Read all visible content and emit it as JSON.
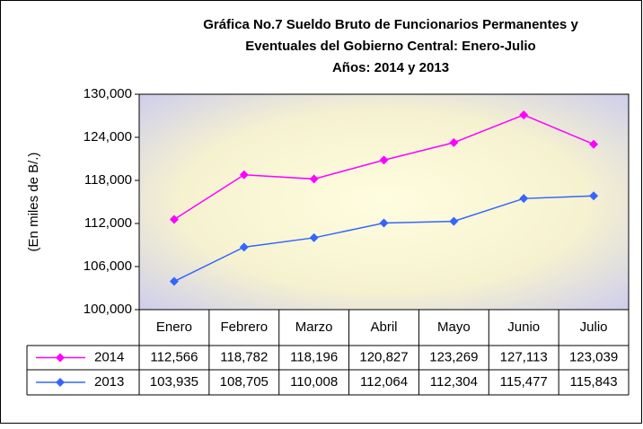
{
  "chart_data": {
    "type": "line",
    "title": [
      "Gráfica No.7 Sueldo Bruto de Funcionarios Permanentes y",
      "Eventuales del Gobierno Central: Enero-Julio",
      "Años: 2014 y 2013"
    ],
    "y_label": "(En miles de B/.)",
    "categories": [
      "Enero",
      "Febrero",
      "Marzo",
      "Abril",
      "Mayo",
      "Junio",
      "Julio"
    ],
    "series": [
      {
        "name": "2014",
        "color": "#ff00ff",
        "values": [
          112566,
          118782,
          118196,
          120827,
          123269,
          127113,
          123039
        ],
        "value_labels": [
          "112,566",
          "118,782",
          "118,196",
          "120,827",
          "123,269",
          "127,113",
          "123,039"
        ]
      },
      {
        "name": "2013",
        "color": "#3366ff",
        "values": [
          103935,
          108705,
          110008,
          112064,
          112304,
          115477,
          115843
        ],
        "value_labels": [
          "103,935",
          "108,705",
          "110,008",
          "112,064",
          "112,304",
          "115,477",
          "115,843"
        ]
      }
    ],
    "ylim": [
      100000,
      130000
    ],
    "yticks": [
      {
        "value": 100000,
        "label": "100,000"
      },
      {
        "value": 106000,
        "label": "106,000"
      },
      {
        "value": 112000,
        "label": "112,000"
      },
      {
        "value": 118000,
        "label": "118,000"
      },
      {
        "value": 124000,
        "label": "124,000"
      },
      {
        "value": 130000,
        "label": "130,000"
      }
    ]
  }
}
